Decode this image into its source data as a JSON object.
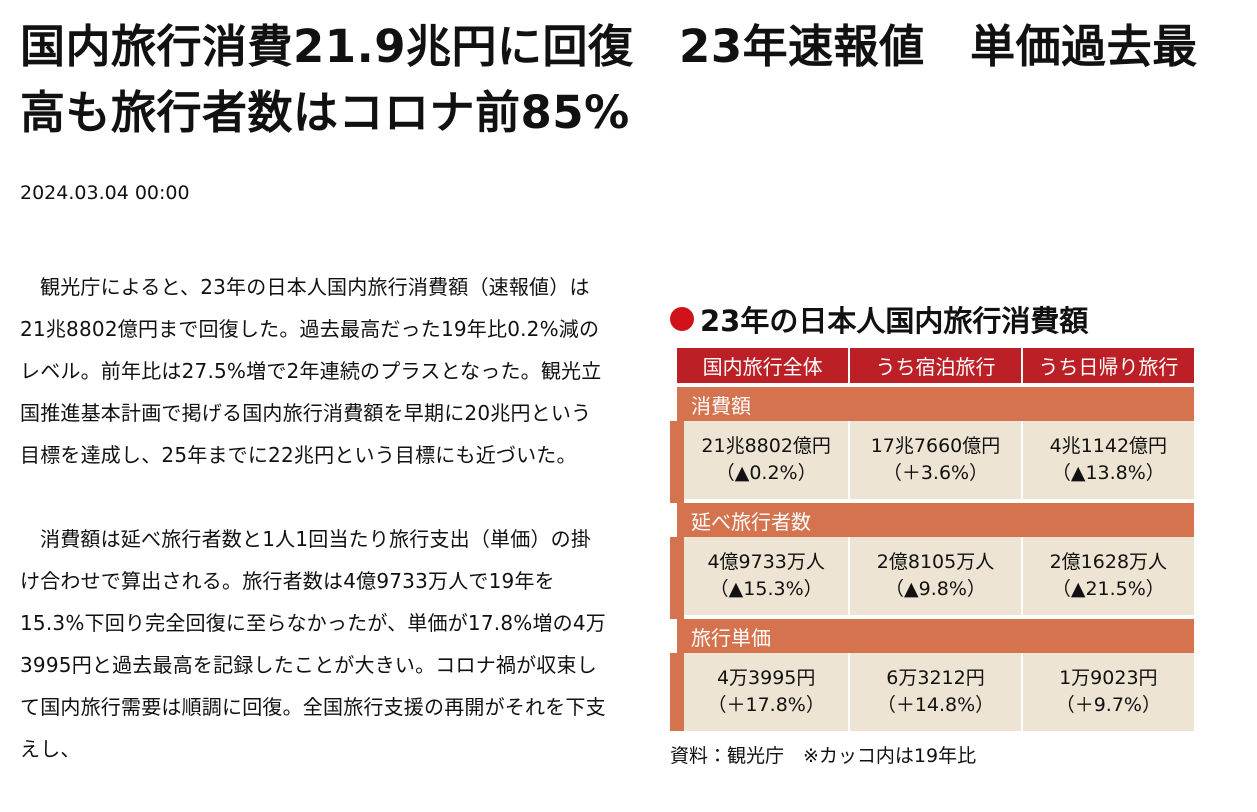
{
  "header": {
    "title": "国内旅行消費21.9兆円に回復　23年速報値　単価過去最高も旅行者数はコロナ前85%",
    "date": "2024.03.04 00:00"
  },
  "body": [
    "観光庁によると、23年の日本人国内旅行消費額（速報値）は21兆8802億円まで回復した。過去最高だった19年比0.2%減のレベル。前年比は27.5%増で2年連続のプラスとなった。観光立国推進基本計画で掲げる国内旅行消費額を早期に20兆円という目標を達成し、25年までに22兆円という目標にも近づいた。",
    "消費額は延べ旅行者数と1人1回当たり旅行支出（単価）の掛け合わせで算出される。旅行者数は4億9733万人で19年を15.3%下回り完全回復に至らなかったが、単価が17.8%増の4万3995円と過去最高を記録したことが大きい。コロナ禍が収束して国内旅行需要は順調に回復。全国旅行支援の再開がそれを下支えし、"
  ],
  "figure": {
    "title": "23年の日本人国内旅行消費額",
    "table": {
      "headers": [
        "国内旅行全体",
        "うち宿泊旅行",
        "うち日帰り旅行"
      ],
      "sections": [
        {
          "label": "消費額",
          "cells": [
            [
              "21兆8802億円",
              "（▲0.2%）"
            ],
            [
              "17兆7660億円",
              "（＋3.6%）"
            ],
            [
              "4兆1142億円",
              "（▲13.8%）"
            ]
          ]
        },
        {
          "label": "延べ旅行者数",
          "cells": [
            [
              "4億9733万人",
              "（▲15.3%）"
            ],
            [
              "2億8105万人",
              "（▲9.8%）"
            ],
            [
              "2億1628万人",
              "（▲21.5%）"
            ]
          ]
        },
        {
          "label": "旅行単価",
          "cells": [
            [
              "4万3995円",
              "（＋17.8%）"
            ],
            [
              "6万3212円",
              "（＋14.8%）"
            ],
            [
              "1万9023円",
              "（＋9.7%）"
            ]
          ]
        }
      ]
    },
    "note": "資料：観光庁　※カッコ内は19年比"
  }
}
